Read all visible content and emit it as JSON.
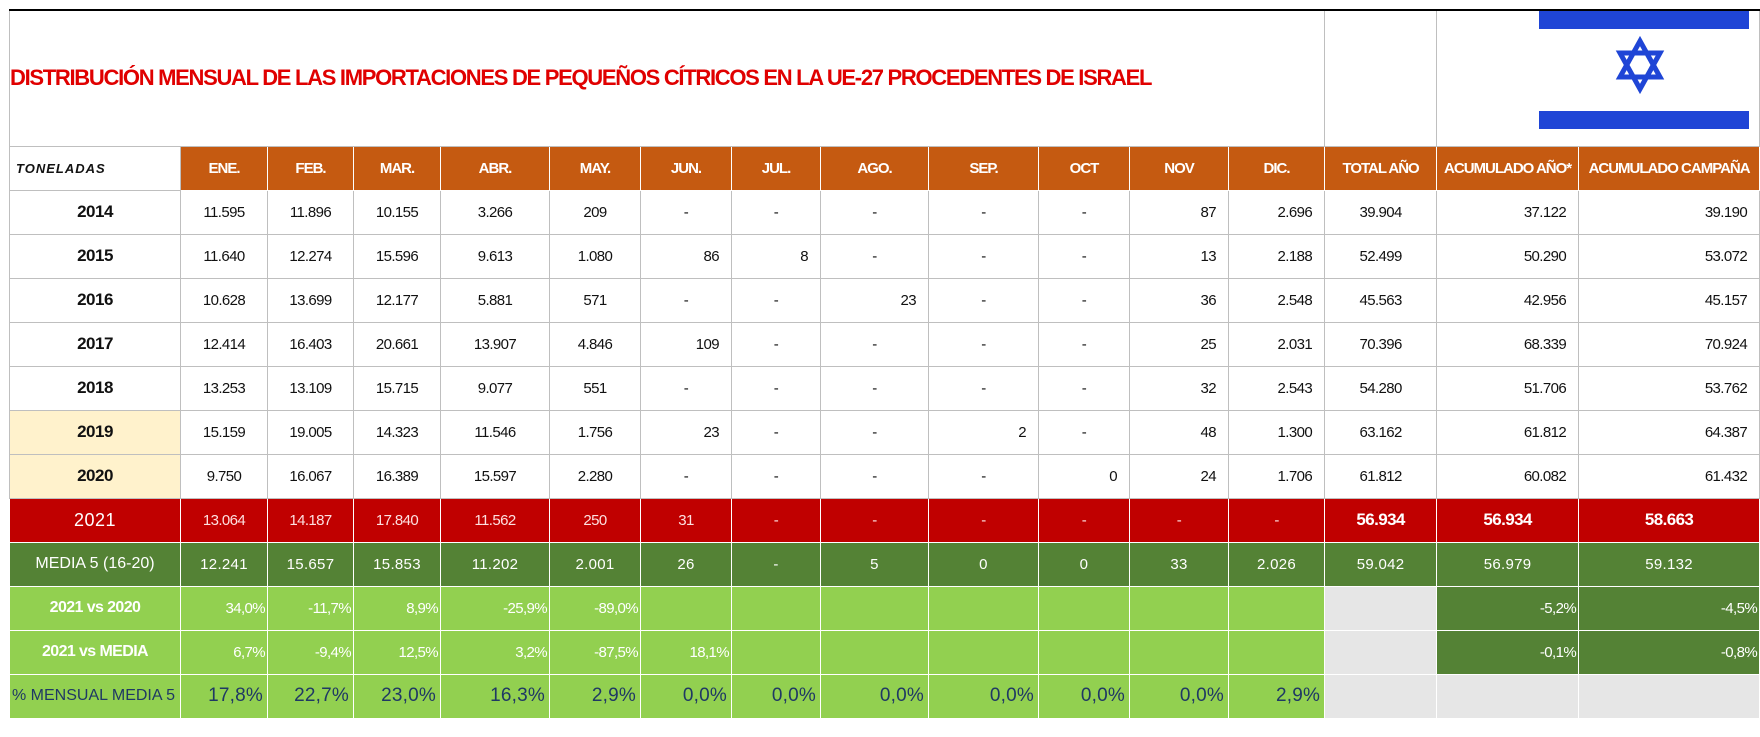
{
  "title": "DISTRIBUCIÓN MENSUAL DE LAS IMPORTACIONES DE PEQUEÑOS CÍTRICOS EN LA UE-27 PROCEDENTES DE ISRAEL",
  "header": {
    "unit": "TONELADAS",
    "columns": [
      "ENE.",
      "FEB.",
      "MAR.",
      "ABR.",
      "MAY.",
      "JUN.",
      "JUL.",
      "AGO.",
      "SEP.",
      "OCT",
      "NOV",
      "DIC.",
      "TOTAL AÑO",
      "ACUMULADO AÑO*",
      "ACUMULADO CAMPAÑA"
    ]
  },
  "rows": [
    {
      "label": "2014",
      "cells": [
        "11.595",
        "11.896",
        "10.155",
        "3.266",
        "209",
        "-",
        "-",
        "-",
        "-",
        "-",
        "87",
        "2.696",
        "39.904",
        "37.122",
        "39.190"
      ]
    },
    {
      "label": "2015",
      "cells": [
        "11.640",
        "12.274",
        "15.596",
        "9.613",
        "1.080",
        "86",
        "8",
        "-",
        "-",
        "-",
        "13",
        "2.188",
        "52.499",
        "50.290",
        "53.072"
      ]
    },
    {
      "label": "2016",
      "cells": [
        "10.628",
        "13.699",
        "12.177",
        "5.881",
        "571",
        "-",
        "-",
        "23",
        "-",
        "-",
        "36",
        "2.548",
        "45.563",
        "42.956",
        "45.157"
      ]
    },
    {
      "label": "2017",
      "cells": [
        "12.414",
        "16.403",
        "20.661",
        "13.907",
        "4.846",
        "109",
        "-",
        "-",
        "-",
        "-",
        "25",
        "2.031",
        "70.396",
        "68.339",
        "70.924"
      ]
    },
    {
      "label": "2018",
      "cells": [
        "13.253",
        "13.109",
        "15.715",
        "9.077",
        "551",
        "-",
        "-",
        "-",
        "-",
        "-",
        "32",
        "2.543",
        "54.280",
        "51.706",
        "53.762"
      ]
    },
    {
      "label": "2019",
      "cells": [
        "15.159",
        "19.005",
        "14.323",
        "11.546",
        "1.756",
        "23",
        "-",
        "-",
        "2",
        "-",
        "48",
        "1.300",
        "63.162",
        "61.812",
        "64.387"
      ]
    },
    {
      "label": "2020",
      "cells": [
        "9.750",
        "16.067",
        "16.389",
        "15.597",
        "2.280",
        "-",
        "-",
        "-",
        "-",
        "0",
        "24",
        "1.706",
        "61.812",
        "60.082",
        "61.432"
      ]
    },
    {
      "label": "2021",
      "cells": [
        "13.064",
        "14.187",
        "17.840",
        "11.562",
        "250",
        "31",
        "-",
        "-",
        "-",
        "-",
        "-",
        "-",
        "56.934",
        "56.934",
        "58.663"
      ]
    },
    {
      "label": "MEDIA 5 (16-20)",
      "cells": [
        "12.241",
        "15.657",
        "15.853",
        "11.202",
        "2.001",
        "26",
        "-",
        "5",
        "0",
        "0",
        "33",
        "2.026",
        "59.042",
        "56.979",
        "59.132"
      ]
    },
    {
      "label": "2021 vs 2020",
      "cells": [
        "34,0%",
        "-11,7%",
        "8,9%",
        "-25,9%",
        "-89,0%",
        null,
        null,
        null,
        null,
        null,
        null,
        null,
        null,
        "-5,2%",
        "-4,5%"
      ]
    },
    {
      "label": "2021 vs MEDIA",
      "cells": [
        "6,7%",
        "-9,4%",
        "12,5%",
        "3,2%",
        "-87,5%",
        "18,1%",
        null,
        null,
        null,
        null,
        null,
        null,
        null,
        "-0,1%",
        "-0,8%"
      ]
    },
    {
      "label": "% MENSUAL MEDIA 5",
      "cells": [
        "17,8%",
        "22,7%",
        "23,0%",
        "16,3%",
        "2,9%",
        "0,0%",
        "0,0%",
        "0,0%",
        "0,0%",
        "0,0%",
        "0,0%",
        "2,9%",
        null,
        null,
        null
      ]
    }
  ]
}
